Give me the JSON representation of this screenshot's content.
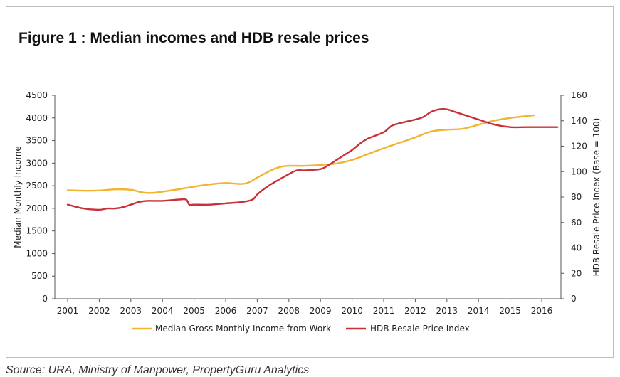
{
  "figure_title": "Figure 1 : Median incomes and HDB resale prices",
  "source": "Source: URA, Ministry of Manpower, PropertyGuru Analytics",
  "colors": {
    "income": "#f2b330",
    "hdb": "#c8313a",
    "axis": "#555555"
  },
  "chart_data": {
    "type": "line",
    "title": "Figure 1 : Median incomes and HDB resale prices",
    "categories": [
      "2001",
      "2002",
      "2003",
      "2004",
      "2005",
      "2006",
      "2007",
      "2008",
      "2009",
      "2010",
      "2011",
      "2012",
      "2013",
      "2014",
      "2015",
      "2016"
    ],
    "y_left": {
      "label": "Median Monthly Income",
      "range": [
        0,
        4500
      ],
      "ticks": [
        "0",
        "500",
        "1000",
        "1500",
        "2000",
        "2500",
        "3000",
        "3500",
        "4000",
        "4500"
      ]
    },
    "y_right": {
      "label": "HDB Resale Price Index (Base = 100)",
      "range": [
        0,
        160
      ],
      "ticks": [
        "0",
        "20",
        "40",
        "60",
        "80",
        "100",
        "120",
        "140",
        "160"
      ]
    },
    "grid": false,
    "legend_position": "bottom",
    "series": [
      {
        "name": "Median Gross Monthly Income from Work",
        "axis": "left",
        "color": "#f2b330",
        "x": [
          2001,
          2001.5,
          2002,
          2002.5,
          2003,
          2003.25,
          2003.5,
          2003.75,
          2004,
          2004.5,
          2005,
          2005.5,
          2006,
          2006.5,
          2006.75,
          2007,
          2007.5,
          2007.75,
          2008,
          2008.5,
          2009,
          2009.5,
          2010,
          2010.5,
          2011,
          2011.5,
          2012,
          2012.5,
          2013,
          2013.5,
          2014,
          2014.5,
          2015,
          2015.5,
          2015.75
        ],
        "values": [
          2400,
          2390,
          2395,
          2420,
          2410,
          2370,
          2340,
          2345,
          2370,
          2420,
          2480,
          2530,
          2560,
          2540,
          2580,
          2680,
          2860,
          2920,
          2940,
          2940,
          2960,
          2990,
          3070,
          3200,
          3330,
          3450,
          3570,
          3700,
          3740,
          3760,
          3850,
          3940,
          4000,
          4040,
          4060
        ]
      },
      {
        "name": "HDB Resale Price Index",
        "axis": "right",
        "color": "#c8313a",
        "x": [
          2001,
          2001.5,
          2002,
          2002.25,
          2002.5,
          2002.75,
          2003,
          2003.25,
          2003.5,
          2004,
          2004.5,
          2004.75,
          2004.85,
          2005,
          2005.5,
          2006,
          2006.5,
          2006.85,
          2007,
          2007.25,
          2007.5,
          2008,
          2008.25,
          2008.5,
          2009,
          2009.25,
          2009.5,
          2009.75,
          2010,
          2010.25,
          2010.5,
          2011,
          2011.25,
          2011.5,
          2012,
          2012.25,
          2012.5,
          2012.75,
          2013,
          2013.25,
          2013.5,
          2014,
          2014.5,
          2015,
          2015.5,
          2016,
          2016.5
        ],
        "values": [
          74,
          71,
          70,
          71,
          71,
          72,
          74,
          76,
          77,
          77,
          78,
          78,
          74,
          74,
          74,
          75,
          76,
          78,
          82,
          87,
          91,
          98,
          101,
          101,
          102,
          105,
          109,
          113,
          117,
          122,
          126,
          131,
          136,
          138,
          141,
          143,
          147,
          149,
          149,
          147,
          145,
          141,
          137,
          135,
          135,
          135,
          135
        ]
      }
    ]
  }
}
